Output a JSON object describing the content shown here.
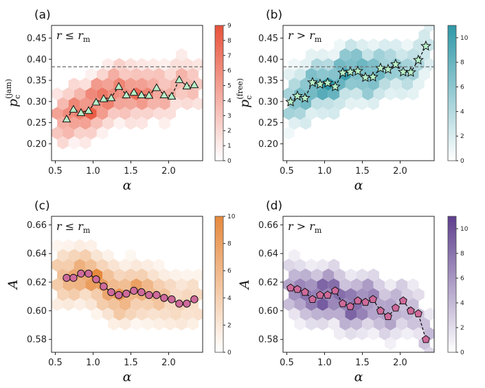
{
  "chart_data": [
    {
      "type": "hexbin+line",
      "panel_label": "(a)",
      "annotation": {
        "lhs": "r",
        "op": "≤",
        "rhs": "r",
        "rhs_sub": "m"
      },
      "xlabel": "α",
      "ylabel": {
        "main": "p",
        "sub": "c",
        "sup": "(jam)"
      },
      "xlim": [
        0.45,
        2.45
      ],
      "ylim": [
        0.16,
        0.48
      ],
      "xticks": [
        0.5,
        1.0,
        1.5,
        2.0
      ],
      "xtick_labels": [
        "0.5",
        "1.0",
        "1.5",
        "2.0"
      ],
      "yticks": [
        0.2,
        0.25,
        0.3,
        0.35,
        0.4,
        0.45
      ],
      "ytick_labels": [
        "0.20",
        "0.25",
        "0.30",
        "0.35",
        "0.40",
        "0.45"
      ],
      "hline": 0.382,
      "colormap": "Reds",
      "color_high": "#e8523a",
      "colorbar": {
        "min": 0,
        "max": 9,
        "ticks": [
          0,
          1,
          2,
          3,
          4,
          5,
          6,
          7,
          8,
          9
        ],
        "tick_labels": [
          "0",
          "1",
          "2",
          "3",
          "4",
          "5",
          "6",
          "7",
          "8",
          "9"
        ]
      },
      "marker": "triangle",
      "marker_color": "#b8f0c8",
      "series": [
        {
          "x": [
            0.65,
            0.74,
            0.84,
            0.94,
            1.04,
            1.14,
            1.24,
            1.34,
            1.44,
            1.54,
            1.64,
            1.74,
            1.84,
            1.94,
            2.04,
            2.14,
            2.24,
            2.34
          ],
          "y": [
            0.259,
            0.282,
            0.274,
            0.279,
            0.299,
            0.307,
            0.309,
            0.336,
            0.316,
            0.322,
            0.316,
            0.315,
            0.333,
            0.316,
            0.313,
            0.352,
            0.337,
            0.34
          ]
        }
      ]
    },
    {
      "type": "hexbin+line",
      "panel_label": "(b)",
      "annotation": {
        "lhs": "r",
        "op": ">",
        "rhs": "r",
        "rhs_sub": "m"
      },
      "xlabel": "α",
      "ylabel": {
        "main": "p",
        "sub": "c",
        "sup": "(free)"
      },
      "xlim": [
        0.45,
        2.45
      ],
      "ylim": [
        0.16,
        0.48
      ],
      "xticks": [
        0.5,
        1.0,
        1.5,
        2.0
      ],
      "xtick_labels": [
        "0.5",
        "1.0",
        "1.5",
        "2.0"
      ],
      "yticks": [
        0.2,
        0.25,
        0.3,
        0.35,
        0.4,
        0.45
      ],
      "ytick_labels": [
        "0.20",
        "0.25",
        "0.30",
        "0.35",
        "0.40",
        "0.45"
      ],
      "hline": 0.382,
      "colormap": "Teal",
      "color_high": "#2f98a8",
      "colorbar": {
        "min": 0,
        "max": 11,
        "ticks": [
          0,
          2,
          4,
          6,
          8,
          10
        ],
        "tick_labels": [
          "0",
          "2",
          "4",
          "6",
          "8",
          "10"
        ]
      },
      "marker": "star",
      "marker_color": "#b8f0c8",
      "series": [
        {
          "x": [
            0.55,
            0.64,
            0.74,
            0.84,
            0.94,
            1.04,
            1.14,
            1.24,
            1.34,
            1.44,
            1.54,
            1.64,
            1.74,
            1.84,
            1.94,
            2.04,
            2.14,
            2.24,
            2.34
          ],
          "y": [
            0.299,
            0.313,
            0.308,
            0.345,
            0.341,
            0.344,
            0.335,
            0.368,
            0.37,
            0.372,
            0.357,
            0.358,
            0.379,
            0.376,
            0.388,
            0.37,
            0.369,
            0.398,
            0.431
          ]
        }
      ]
    },
    {
      "type": "hexbin+line",
      "panel_label": "(c)",
      "annotation": {
        "lhs": "r",
        "op": "≤",
        "rhs": "r",
        "rhs_sub": "m"
      },
      "xlabel": "α",
      "ylabel": {
        "main": "A",
        "sub": "",
        "sup": ""
      },
      "xlim": [
        0.45,
        2.45
      ],
      "ylim": [
        0.571,
        0.666
      ],
      "xticks": [
        0.5,
        1.0,
        1.5,
        2.0
      ],
      "xtick_labels": [
        "0.5",
        "1.0",
        "1.5",
        "2.0"
      ],
      "yticks": [
        0.58,
        0.6,
        0.62,
        0.64,
        0.66
      ],
      "ytick_labels": [
        "0.58",
        "0.60",
        "0.62",
        "0.64",
        "0.66"
      ],
      "hline": null,
      "colormap": "Oranges",
      "color_high": "#e6893c",
      "colorbar": {
        "min": 0,
        "max": 10,
        "ticks": [
          0,
          2,
          4,
          6,
          8,
          10
        ],
        "tick_labels": [
          "0",
          "2",
          "4",
          "6",
          "8",
          "10"
        ]
      },
      "marker": "circle",
      "marker_color": "#cf6a9b",
      "line": "solid",
      "series": [
        {
          "x": [
            0.65,
            0.74,
            0.84,
            0.94,
            1.04,
            1.14,
            1.24,
            1.34,
            1.44,
            1.54,
            1.64,
            1.74,
            1.84,
            1.94,
            2.04,
            2.14,
            2.24,
            2.34
          ],
          "y": [
            0.623,
            0.623,
            0.626,
            0.626,
            0.622,
            0.617,
            0.613,
            0.611,
            0.612,
            0.614,
            0.613,
            0.611,
            0.611,
            0.609,
            0.608,
            0.605,
            0.605,
            0.608
          ]
        }
      ]
    },
    {
      "type": "hexbin+line",
      "panel_label": "(d)",
      "annotation": {
        "lhs": "r",
        "op": ">",
        "rhs": "r",
        "rhs_sub": "m"
      },
      "xlabel": "α",
      "ylabel": {
        "main": "A",
        "sub": "",
        "sup": ""
      },
      "xlim": [
        0.45,
        2.45
      ],
      "ylim": [
        0.571,
        0.666
      ],
      "xticks": [
        0.5,
        1.0,
        1.5,
        2.0
      ],
      "xtick_labels": [
        "0.5",
        "1.0",
        "1.5",
        "2.0"
      ],
      "yticks": [
        0.58,
        0.6,
        0.62,
        0.64,
        0.66
      ],
      "ytick_labels": [
        "0.58",
        "0.60",
        "0.62",
        "0.64",
        "0.66"
      ],
      "hline": null,
      "colormap": "Purples",
      "color_high": "#5e3f8f",
      "colorbar": {
        "min": 0,
        "max": 11,
        "ticks": [
          0,
          2,
          4,
          6,
          8,
          10
        ],
        "tick_labels": [
          "0",
          "2",
          "4",
          "6",
          "8",
          "10"
        ]
      },
      "marker": "pentagon",
      "marker_color": "#cf6a9b",
      "series": [
        {
          "x": [
            0.55,
            0.64,
            0.74,
            0.84,
            0.94,
            1.04,
            1.14,
            1.24,
            1.34,
            1.44,
            1.54,
            1.64,
            1.74,
            1.84,
            1.94,
            2.04,
            2.14,
            2.24,
            2.34
          ],
          "y": [
            0.616,
            0.615,
            0.613,
            0.608,
            0.611,
            0.611,
            0.614,
            0.605,
            0.603,
            0.607,
            0.606,
            0.608,
            0.6,
            0.596,
            0.602,
            0.607,
            0.6,
            0.598,
            0.58
          ]
        }
      ]
    }
  ]
}
